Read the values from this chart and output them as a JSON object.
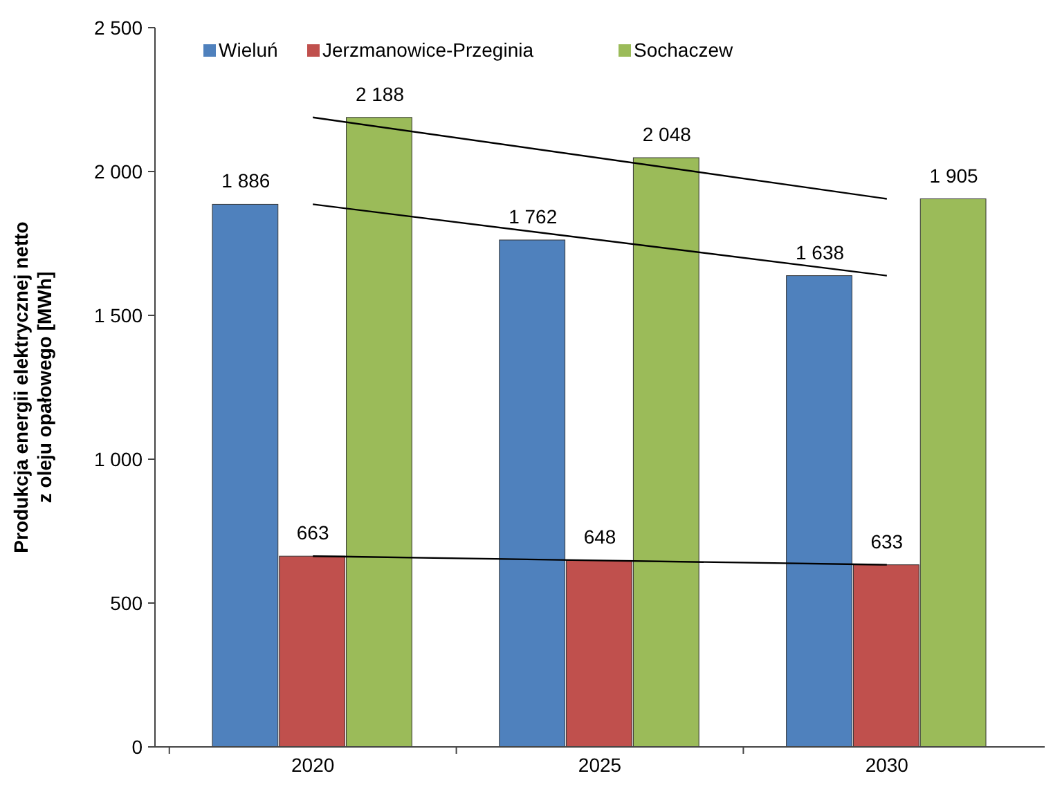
{
  "chart_data": {
    "type": "bar",
    "ylabel": "Produkcja energii elektrycznej netto\nz oleju opałowego [MWh]",
    "categories": [
      "2020",
      "2025",
      "2030"
    ],
    "series": [
      {
        "name": "Wieluń",
        "color": "#4f81bd",
        "values": [
          1886,
          1762,
          1638
        ],
        "value_labels": [
          "1 886",
          "1 762",
          "1 638"
        ]
      },
      {
        "name": "Jerzmanowice-Przeginia",
        "color": "#c0504d",
        "values": [
          663,
          648,
          633
        ],
        "value_labels": [
          "663",
          "648",
          "633"
        ]
      },
      {
        "name": "Sochaczew",
        "color": "#9bbb59",
        "values": [
          2188,
          2048,
          1905
        ],
        "value_labels": [
          "2 188",
          "2 048",
          "1 905"
        ]
      },
      {
        "type": "line",
        "color": "#000000",
        "values": [
          2188,
          null,
          1905
        ]
      },
      {
        "type": "line",
        "color": "#000000",
        "values": [
          1886,
          null,
          1638
        ]
      },
      {
        "type": "line",
        "color": "#000000",
        "values": [
          663,
          null,
          633
        ]
      }
    ],
    "ylim": [
      0,
      2500
    ],
    "yticks": [
      0,
      {
        "value": 500,
        "label": "500"
      },
      {
        "value": 1000,
        "label": "1 000"
      },
      {
        "value": 1500,
        "label": "1 500"
      },
      {
        "value": 2000,
        "label": "2 000"
      },
      {
        "value": 2500,
        "label": "2 500"
      }
    ],
    "grid": false,
    "legend": "top left"
  }
}
